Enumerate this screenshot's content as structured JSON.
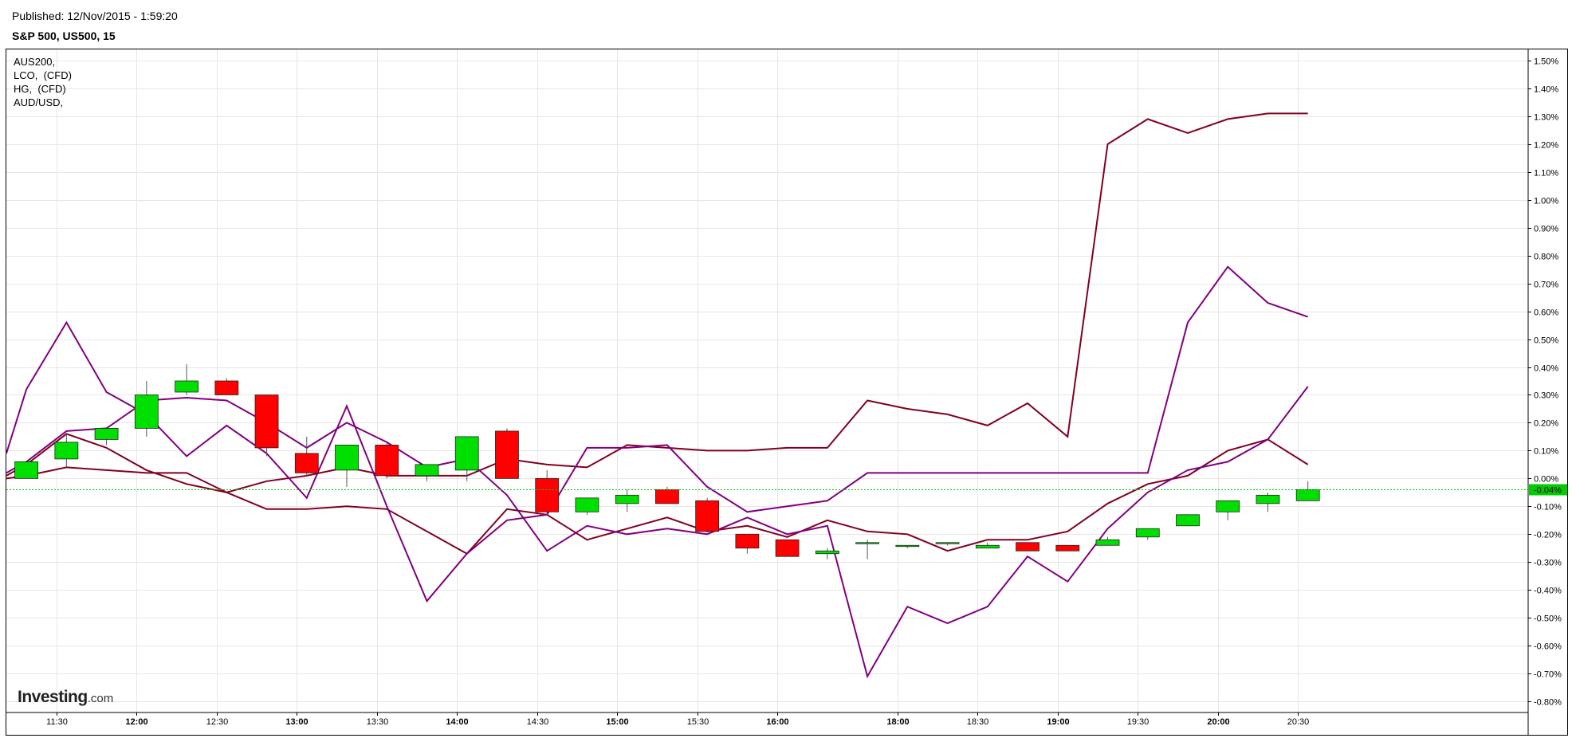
{
  "header": {
    "published": "Published: 12/Nov/2015 - 1:59:20",
    "symbol": "S&P 500, US500, 15"
  },
  "legend": [
    "AUS200,",
    "LCO,  (CFD)",
    "HG,  (CFD)",
    "AUD/USD,"
  ],
  "logo": {
    "main": "Investing",
    "suffix": ".com"
  },
  "colors": {
    "up": "#00e000",
    "down": "#ff0000",
    "current": "#00cc00",
    "series_dark": "#800020",
    "series_purple": "#800080",
    "grid": "#e6e6e6"
  },
  "chart_data": {
    "type": "candlestick",
    "time_labels": [
      {
        "label": "11:30",
        "t": 0.75,
        "bold": false
      },
      {
        "label": "12:00",
        "t": 2.75,
        "bold": true
      },
      {
        "label": "12:30",
        "t": 4.75,
        "bold": false
      },
      {
        "label": "13:00",
        "t": 6.75,
        "bold": true
      },
      {
        "label": "13:30",
        "t": 8.75,
        "bold": false
      },
      {
        "label": "14:00",
        "t": 10.75,
        "bold": true
      },
      {
        "label": "14:30",
        "t": 12.75,
        "bold": false
      },
      {
        "label": "15:00",
        "t": 14.75,
        "bold": true
      },
      {
        "label": "15:30",
        "t": 16.75,
        "bold": false
      },
      {
        "label": "16:00",
        "t": 18.75,
        "bold": true
      },
      {
        "label": "18:00",
        "t": 21.75,
        "bold": true
      },
      {
        "label": "18:30",
        "t": 23.75,
        "bold": false
      },
      {
        "label": "19:00",
        "t": 25.75,
        "bold": true
      },
      {
        "label": "19:30",
        "t": 27.75,
        "bold": false
      },
      {
        "label": "20:00",
        "t": 29.75,
        "bold": true
      },
      {
        "label": "20:30",
        "t": 31.75,
        "bold": false
      }
    ],
    "y_ticks": [
      "1.50%",
      "1.40%",
      "1.30%",
      "1.20%",
      "1.10%",
      "1.00%",
      "0.90%",
      "0.80%",
      "0.70%",
      "0.60%",
      "0.50%",
      "0.40%",
      "0.30%",
      "0.20%",
      "0.10%",
      "0.00%",
      "-0.10%",
      "-0.20%",
      "-0.30%",
      "-0.40%",
      "-0.50%",
      "-0.60%",
      "-0.70%",
      "-0.80%"
    ],
    "y_tick_values": [
      1.5,
      1.4,
      1.3,
      1.2,
      1.1,
      1.0,
      0.9,
      0.8,
      0.7,
      0.6,
      0.5,
      0.4,
      0.3,
      0.2,
      0.1,
      0.0,
      -0.1,
      -0.2,
      -0.3,
      -0.4,
      -0.5,
      -0.6,
      -0.7,
      -0.8
    ],
    "ylim": [
      -0.84,
      1.54
    ],
    "xlim": [
      -0.5,
      37.5
    ],
    "current_value": -0.04,
    "current_label": "-0.04%",
    "candles": [
      {
        "t": 0,
        "o": 0.0,
        "h": 0.06,
        "l": 0.0,
        "c": 0.06
      },
      {
        "t": 1,
        "o": 0.07,
        "h": 0.16,
        "l": 0.04,
        "c": 0.13
      },
      {
        "t": 2,
        "o": 0.14,
        "h": 0.18,
        "l": 0.12,
        "c": 0.18
      },
      {
        "t": 3,
        "o": 0.18,
        "h": 0.35,
        "l": 0.15,
        "c": 0.3
      },
      {
        "t": 4,
        "o": 0.31,
        "h": 0.41,
        "l": 0.3,
        "c": 0.35
      },
      {
        "t": 5,
        "o": 0.35,
        "h": 0.36,
        "l": 0.3,
        "c": 0.3
      },
      {
        "t": 6,
        "o": 0.3,
        "h": 0.3,
        "l": 0.08,
        "c": 0.11
      },
      {
        "t": 7,
        "o": 0.09,
        "h": 0.15,
        "l": 0.01,
        "c": 0.02
      },
      {
        "t": 8,
        "o": 0.03,
        "h": 0.12,
        "l": -0.03,
        "c": 0.12
      },
      {
        "t": 9,
        "o": 0.12,
        "h": 0.13,
        "l": 0.0,
        "c": 0.01
      },
      {
        "t": 10,
        "o": 0.01,
        "h": 0.05,
        "l": -0.01,
        "c": 0.05
      },
      {
        "t": 11,
        "o": 0.03,
        "h": 0.15,
        "l": -0.01,
        "c": 0.15
      },
      {
        "t": 12,
        "o": 0.17,
        "h": 0.18,
        "l": 0.0,
        "c": 0.0
      },
      {
        "t": 13,
        "o": 0.0,
        "h": 0.03,
        "l": -0.13,
        "c": -0.12
      },
      {
        "t": 14,
        "o": -0.12,
        "h": -0.07,
        "l": -0.13,
        "c": -0.07
      },
      {
        "t": 15,
        "o": -0.09,
        "h": -0.04,
        "l": -0.12,
        "c": -0.06
      },
      {
        "t": 16,
        "o": -0.04,
        "h": -0.03,
        "l": -0.09,
        "c": -0.09
      },
      {
        "t": 17,
        "o": -0.08,
        "h": -0.07,
        "l": -0.19,
        "c": -0.19
      },
      {
        "t": 18,
        "o": -0.2,
        "h": -0.2,
        "l": -0.27,
        "c": -0.25
      },
      {
        "t": 19,
        "o": -0.22,
        "h": -0.22,
        "l": -0.28,
        "c": -0.28
      },
      {
        "t": 20,
        "o": -0.27,
        "h": -0.25,
        "l": -0.29,
        "c": -0.26
      },
      {
        "t": 21,
        "o": -0.23,
        "h": -0.22,
        "l": -0.29,
        "c": -0.23
      },
      {
        "t": 22,
        "o": -0.24,
        "h": -0.24,
        "l": -0.25,
        "c": -0.24
      },
      {
        "t": 23,
        "o": -0.23,
        "h": -0.23,
        "l": -0.24,
        "c": -0.23
      },
      {
        "t": 24,
        "o": -0.25,
        "h": -0.23,
        "l": -0.25,
        "c": -0.24
      },
      {
        "t": 25,
        "o": -0.23,
        "h": -0.23,
        "l": -0.26,
        "c": -0.26
      },
      {
        "t": 26,
        "o": -0.24,
        "h": -0.24,
        "l": -0.26,
        "c": -0.26
      },
      {
        "t": 27,
        "o": -0.24,
        "h": -0.21,
        "l": -0.24,
        "c": -0.22
      },
      {
        "t": 28,
        "o": -0.21,
        "h": -0.18,
        "l": -0.22,
        "c": -0.18
      },
      {
        "t": 29,
        "o": -0.17,
        "h": -0.13,
        "l": -0.17,
        "c": -0.13
      },
      {
        "t": 30,
        "o": -0.12,
        "h": -0.08,
        "l": -0.15,
        "c": -0.08
      },
      {
        "t": 31,
        "o": -0.09,
        "h": -0.05,
        "l": -0.12,
        "c": -0.06
      },
      {
        "t": 32,
        "o": -0.08,
        "h": -0.01,
        "l": -0.08,
        "c": -0.04
      }
    ],
    "series": [
      {
        "color": "#800020",
        "points": [
          [
            -0.5,
            0.0
          ],
          [
            0,
            0.01
          ],
          [
            1,
            0.04
          ],
          [
            2,
            0.03
          ],
          [
            3,
            0.02
          ],
          [
            4,
            0.02
          ],
          [
            5,
            -0.05
          ],
          [
            6,
            -0.11
          ],
          [
            7,
            -0.11
          ],
          [
            8,
            -0.1
          ],
          [
            9,
            -0.11
          ],
          [
            10,
            -0.19
          ],
          [
            11,
            -0.27
          ],
          [
            12,
            -0.11
          ],
          [
            13,
            -0.13
          ],
          [
            14,
            -0.22
          ],
          [
            15,
            -0.18
          ],
          [
            16,
            -0.14
          ],
          [
            17,
            -0.19
          ],
          [
            18,
            -0.17
          ],
          [
            19,
            -0.21
          ],
          [
            20,
            -0.15
          ],
          [
            21,
            -0.19
          ],
          [
            22,
            -0.2
          ],
          [
            23,
            -0.26
          ],
          [
            24,
            -0.22
          ],
          [
            25,
            -0.22
          ],
          [
            26,
            -0.19
          ],
          [
            27,
            -0.09
          ],
          [
            28,
            -0.02
          ],
          [
            29,
            0.01
          ],
          [
            30,
            0.1
          ],
          [
            31,
            0.14
          ],
          [
            32,
            0.05
          ]
        ]
      },
      {
        "color": "#800020",
        "points": [
          [
            -0.5,
            0.01
          ],
          [
            0,
            0.05
          ],
          [
            1,
            0.16
          ],
          [
            2,
            0.11
          ],
          [
            3,
            0.03
          ],
          [
            4,
            -0.02
          ],
          [
            5,
            -0.05
          ],
          [
            6,
            -0.01
          ],
          [
            7,
            0.01
          ],
          [
            8,
            0.04
          ],
          [
            9,
            0.01
          ],
          [
            10,
            0.01
          ],
          [
            11,
            0.01
          ],
          [
            12,
            0.07
          ],
          [
            13,
            0.05
          ],
          [
            14,
            0.04
          ],
          [
            15,
            0.12
          ],
          [
            16,
            0.11
          ],
          [
            17,
            0.1
          ],
          [
            18,
            0.1
          ],
          [
            19,
            0.11
          ],
          [
            20,
            0.11
          ],
          [
            21,
            0.28
          ],
          [
            22,
            0.25
          ],
          [
            23,
            0.23
          ],
          [
            24,
            0.19
          ],
          [
            25,
            0.27
          ],
          [
            26,
            0.15
          ],
          [
            27,
            1.2
          ],
          [
            28,
            1.29
          ],
          [
            29,
            1.24
          ],
          [
            30,
            1.29
          ],
          [
            31,
            1.31
          ],
          [
            32,
            1.31
          ]
        ]
      },
      {
        "color": "#800080",
        "points": [
          [
            -0.5,
            0.09
          ],
          [
            0,
            0.32
          ],
          [
            1,
            0.56
          ],
          [
            2,
            0.31
          ],
          [
            3,
            0.23
          ],
          [
            4,
            0.08
          ],
          [
            5,
            0.19
          ],
          [
            6,
            0.09
          ],
          [
            7,
            -0.07
          ],
          [
            8,
            0.26
          ],
          [
            9,
            -0.1
          ],
          [
            10,
            -0.44
          ],
          [
            11,
            -0.27
          ],
          [
            12,
            -0.15
          ],
          [
            13,
            -0.13
          ],
          [
            14,
            0.11
          ],
          [
            15,
            0.11
          ],
          [
            16,
            0.12
          ],
          [
            17,
            -0.03
          ],
          [
            18,
            -0.12
          ],
          [
            19,
            -0.1
          ],
          [
            20,
            -0.08
          ],
          [
            21,
            0.02
          ],
          [
            22,
            0.02
          ],
          [
            23,
            0.02
          ],
          [
            24,
            0.02
          ],
          [
            25,
            0.02
          ],
          [
            26,
            0.02
          ],
          [
            27,
            0.02
          ],
          [
            28,
            0.02
          ],
          [
            29,
            0.56
          ],
          [
            30,
            0.76
          ],
          [
            31,
            0.63
          ],
          [
            32,
            0.58
          ]
        ]
      },
      {
        "color": "#800080",
        "points": [
          [
            -0.5,
            0.02
          ],
          [
            0,
            0.06
          ],
          [
            1,
            0.17
          ],
          [
            2,
            0.18
          ],
          [
            3,
            0.28
          ],
          [
            4,
            0.29
          ],
          [
            5,
            0.28
          ],
          [
            6,
            0.2
          ],
          [
            7,
            0.11
          ],
          [
            8,
            0.2
          ],
          [
            9,
            0.13
          ],
          [
            10,
            0.04
          ],
          [
            11,
            0.07
          ],
          [
            12,
            -0.06
          ],
          [
            13,
            -0.26
          ],
          [
            14,
            -0.17
          ],
          [
            15,
            -0.2
          ],
          [
            16,
            -0.18
          ],
          [
            17,
            -0.2
          ],
          [
            18,
            -0.14
          ],
          [
            19,
            -0.2
          ],
          [
            20,
            -0.17
          ],
          [
            21,
            -0.71
          ],
          [
            22,
            -0.46
          ],
          [
            23,
            -0.52
          ],
          [
            24,
            -0.46
          ],
          [
            25,
            -0.28
          ],
          [
            26,
            -0.37
          ],
          [
            27,
            -0.18
          ],
          [
            28,
            -0.05
          ],
          [
            29,
            0.03
          ],
          [
            30,
            0.06
          ],
          [
            31,
            0.14
          ],
          [
            32,
            0.33
          ]
        ]
      }
    ]
  }
}
